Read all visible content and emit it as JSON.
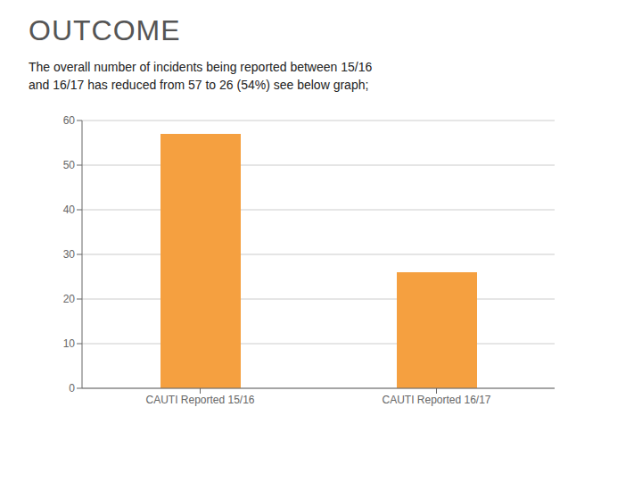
{
  "chart_data": {
    "type": "bar",
    "title": "OUTCOME",
    "subtitle": "The overall number of incidents being reported between 15/16\nand 16/17 has reduced from 57 to 26 (54%) see below graph;",
    "categories": [
      "CAUTI Reported 15/16",
      "CAUTI Reported 16/17"
    ],
    "values": [
      57,
      26
    ],
    "color": "#F5A040",
    "ylim": [
      0,
      60
    ],
    "yticks": [
      0,
      10,
      20,
      30,
      40,
      50,
      60
    ],
    "grid": true
  }
}
